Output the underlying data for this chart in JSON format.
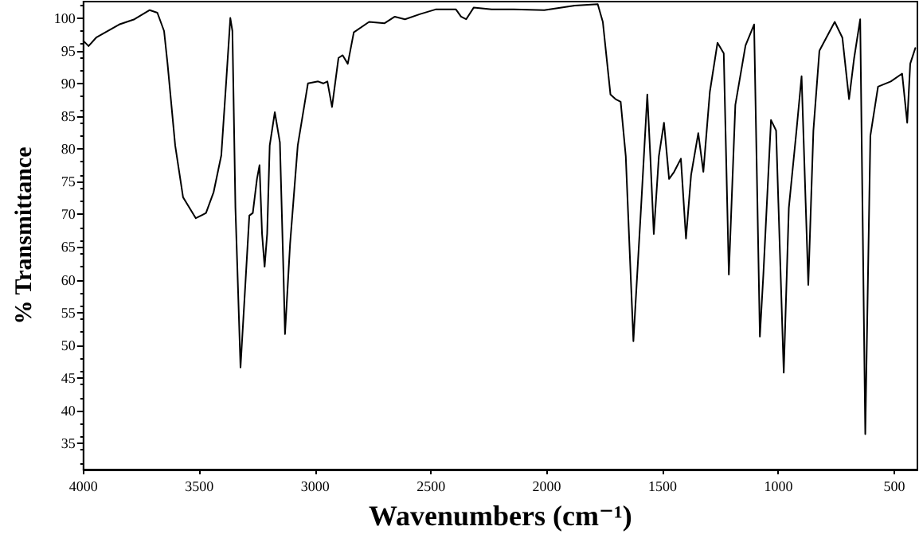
{
  "chart_data": {
    "type": "line",
    "xlabel": "Wavenumbers (cm⁻¹)",
    "ylabel": "% Transmittance",
    "xlim": [
      4000,
      400
    ],
    "xticks": [
      4000,
      3500,
      3000,
      2500,
      2000,
      1500,
      1000,
      500
    ],
    "ylim": [
      31,
      102.5
    ],
    "yticks": [
      35,
      40,
      45,
      50,
      55,
      60,
      65,
      70,
      75,
      80,
      85,
      90,
      95,
      100
    ],
    "grid": false,
    "marker": "none",
    "line_style": "solid",
    "series": [
      {
        "color": "#000000",
        "x": [
          4000,
          3978,
          3945,
          3846,
          3780,
          3714,
          3681,
          3652,
          3637,
          3604,
          3570,
          3515,
          3471,
          3438,
          3405,
          3383,
          3366,
          3357,
          3344,
          3322,
          3300,
          3284,
          3269,
          3251,
          3240,
          3229,
          3218,
          3207,
          3196,
          3174,
          3152,
          3137,
          3130,
          3108,
          3075,
          3031,
          2987,
          2965,
          2947,
          2927,
          2899,
          2881,
          2859,
          2833,
          2767,
          2700,
          2656,
          2612,
          2546,
          2480,
          2392,
          2370,
          2348,
          2315,
          2238,
          2143,
          2011,
          1879,
          1780,
          1758,
          1725,
          1703,
          1681,
          1659,
          1626,
          1593,
          1566,
          1553,
          1538,
          1516,
          1494,
          1472,
          1450,
          1421,
          1399,
          1377,
          1346,
          1324,
          1296,
          1263,
          1236,
          1214,
          1186,
          1142,
          1105,
          1080,
          1065,
          1032,
          1010,
          977,
          955,
          922,
          900,
          871,
          849,
          823,
          757,
          724,
          695,
          673,
          647,
          625,
          603,
          570,
          515,
          466,
          444,
          431,
          409
        ],
        "values": [
          96.5,
          95.7,
          97,
          99,
          99.8,
          101.2,
          100.8,
          98,
          93,
          80.5,
          72.6,
          69.4,
          70.2,
          73.4,
          79,
          90.7,
          100,
          98,
          71,
          46.6,
          60,
          69.8,
          70.2,
          75.4,
          77.5,
          67,
          62,
          67,
          80.5,
          85.6,
          81,
          61.6,
          51.7,
          65.5,
          80.5,
          90,
          90.3,
          90,
          90.3,
          86.4,
          93.9,
          94.3,
          93,
          97.8,
          99.4,
          99.2,
          100.2,
          99.8,
          100.6,
          101.3,
          101.3,
          100.2,
          99.8,
          101.6,
          101.3,
          101.3,
          101.2,
          101.9,
          102.1,
          99.4,
          88.3,
          87.6,
          87.2,
          78.9,
          50.6,
          71,
          88.3,
          78.9,
          67,
          78.9,
          84,
          75.4,
          76.5,
          78.5,
          66.3,
          76,
          82.4,
          76.5,
          88.7,
          96.2,
          94.6,
          60.8,
          86.7,
          95.8,
          99,
          51.3,
          60.8,
          84.4,
          82.8,
          45.8,
          71,
          82.8,
          91.1,
          59.2,
          82.8,
          95,
          99.4,
          97,
          87.6,
          93.9,
          99.8,
          36.4,
          82,
          89.5,
          90.3,
          91.5,
          84,
          93,
          95.4
        ]
      }
    ]
  }
}
